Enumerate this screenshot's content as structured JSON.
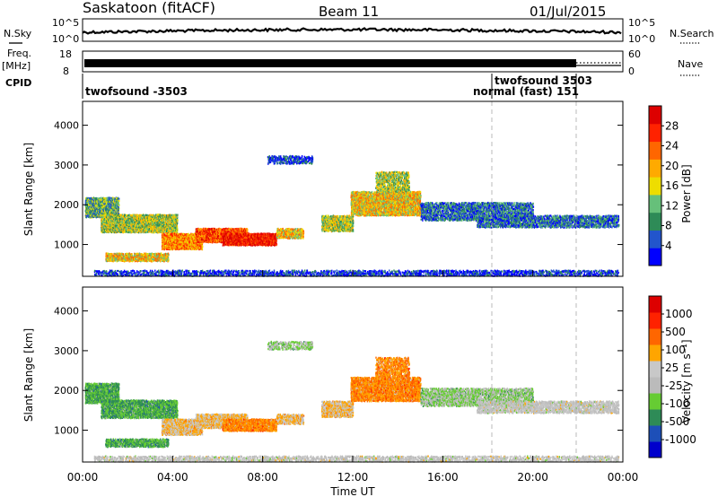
{
  "header": {
    "station": "Saskatoon (fitACF)",
    "beam": "Beam 11",
    "date": "01/Jul/2015"
  },
  "left_labels": {
    "nsky": "N.Sky",
    "freq": "Freq.",
    "freq_unit": "[MHz]",
    "cpid": "CPID"
  },
  "right_labels": {
    "nsearch": "N.Search",
    "nave": "Nave"
  },
  "nsky_axis": {
    "top": "10^5",
    "bottom": "10^0"
  },
  "freq_axis": {
    "top": "18",
    "bottom": "8"
  },
  "nave_axis": {
    "top": "60",
    "bottom": "0"
  },
  "cpid_labels": {
    "first": "twofsound -3503",
    "second": "twofsound 3503",
    "third": "normal (fast) 151"
  },
  "colors": {
    "power": [
      "#0000ff",
      "#2255cc",
      "#2e8b57",
      "#66c07a",
      "#eedd00",
      "#ffaa00",
      "#ff6600",
      "#ff2200",
      "#dd0000"
    ],
    "velocity": [
      "#0000cc",
      "#1d4fb8",
      "#2e8b57",
      "#66cc33",
      "#bbbbbb",
      "#c8c8c8",
      "#ffa500",
      "#ff6600",
      "#ff2200",
      "#dd0000"
    ],
    "ground": "#c0c0c0"
  },
  "chart_data": [
    {
      "type": "heatmap",
      "name": "power",
      "ylabel": "Slant Range [km]",
      "ylim": [
        200,
        4600
      ],
      "xlim": [
        0,
        24
      ],
      "y_ticks": [
        "1000",
        "2000",
        "3000",
        "4000"
      ],
      "colorbar_label": "Power [dB]",
      "colorbar_ticks": [
        "4",
        "8",
        "12",
        "16",
        "20",
        "24",
        "28"
      ],
      "colorbar_range": [
        0,
        32
      ]
    },
    {
      "type": "heatmap",
      "name": "velocity",
      "ylabel": "Slant Range [km]",
      "ylim": [
        200,
        4600
      ],
      "xlim": [
        0,
        24
      ],
      "y_ticks": [
        "1000",
        "2000",
        "3000",
        "4000"
      ],
      "colorbar_label": "Velocity [m s⁻¹]",
      "colorbar_ticks": [
        "1000",
        "500",
        "100",
        "25",
        "-25",
        "-100",
        "-500",
        "-1000"
      ],
      "x_ticks": [
        "00:00",
        "04:00",
        "08:00",
        "12:00",
        "16:00",
        "20:00",
        "00:00"
      ],
      "xlabel": "Time UT"
    }
  ]
}
